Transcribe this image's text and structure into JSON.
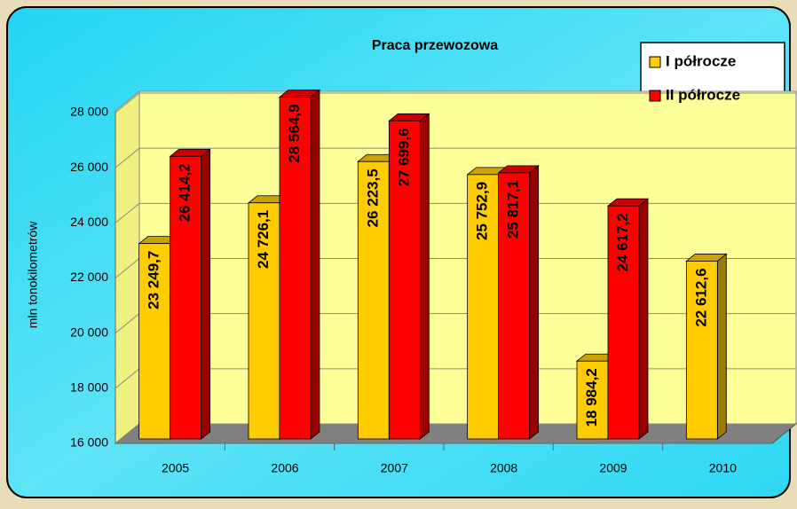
{
  "chart_data": {
    "type": "bar3d",
    "title": "Praca przewozowa",
    "y_label": "mln tonokilometrów",
    "categories": [
      "2005",
      "2006",
      "2007",
      "2008",
      "2009",
      "2010"
    ],
    "series": [
      {
        "name": "I półrocze",
        "color": "#ffcc00",
        "values": [
          23249.7,
          24726.1,
          26223.5,
          25752.9,
          18984.2,
          22612.6
        ],
        "value_labels": [
          "23 249,7",
          "24 726,1",
          "26 223,5",
          "25 752,9",
          "18 984,2",
          "22 612,6"
        ]
      },
      {
        "name": "II półrocze",
        "color": "#ff0000",
        "values": [
          26414.2,
          28564.9,
          27699.6,
          25817.1,
          24617.2,
          null
        ],
        "value_labels": [
          "26 414,2",
          "28 564,9",
          "27 699,6",
          "25 817,1",
          "24 617,2",
          null
        ]
      }
    ],
    "ylim": [
      16000,
      28000
    ],
    "yticks": [
      {
        "value": 16000,
        "label": "16 000"
      },
      {
        "value": 18000,
        "label": "18 000"
      },
      {
        "value": 20000,
        "label": "20 000"
      },
      {
        "value": 22000,
        "label": "22 000"
      },
      {
        "value": 24000,
        "label": "24 000"
      },
      {
        "value": 26000,
        "label": "26 000"
      },
      {
        "value": 28000,
        "label": "28 000"
      }
    ],
    "grid": true,
    "legend": "top-right"
  }
}
